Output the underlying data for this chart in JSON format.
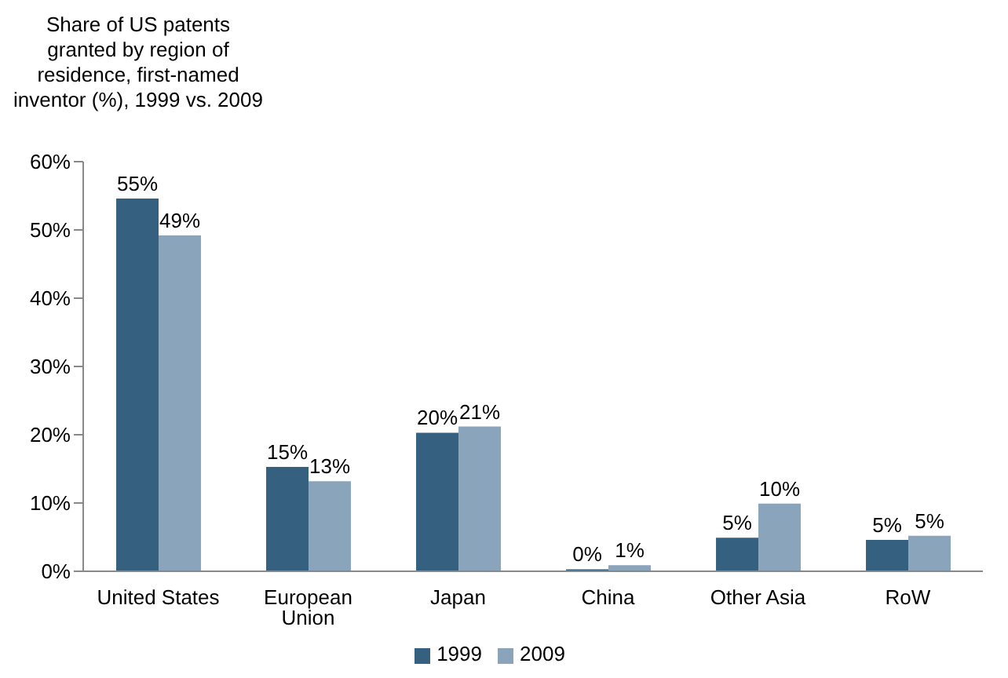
{
  "chart_data": {
    "type": "bar",
    "title": "Share of US patents granted by region of residence, first-named inventor (%), 1999 vs. 2009",
    "categories": [
      "United States",
      "European Union",
      "Japan",
      "China",
      "Other Asia",
      "RoW"
    ],
    "series": [
      {
        "name": "1999",
        "color": "#35607f",
        "values": [
          54.6,
          15.3,
          20.3,
          0.3,
          4.9,
          4.6
        ],
        "value_labels": [
          "55%",
          "15%",
          "20%",
          "0%",
          "5%",
          "5%"
        ]
      },
      {
        "name": "2009",
        "color": "#8aa5bb",
        "values": [
          49.2,
          13.2,
          21.2,
          0.9,
          9.9,
          5.2
        ],
        "value_labels": [
          "49%",
          "13%",
          "21%",
          "1%",
          "10%",
          "5%"
        ]
      }
    ],
    "ylim": [
      0,
      60
    ],
    "yticks": [
      {
        "value": 0,
        "label": "0%"
      },
      {
        "value": 10,
        "label": "10%"
      },
      {
        "value": 20,
        "label": "20%"
      },
      {
        "value": 30,
        "label": "30%"
      },
      {
        "value": 40,
        "label": "40%"
      },
      {
        "value": 50,
        "label": "50%"
      },
      {
        "value": 60,
        "label": "60%"
      }
    ],
    "grid": false,
    "legend": "bottom"
  }
}
